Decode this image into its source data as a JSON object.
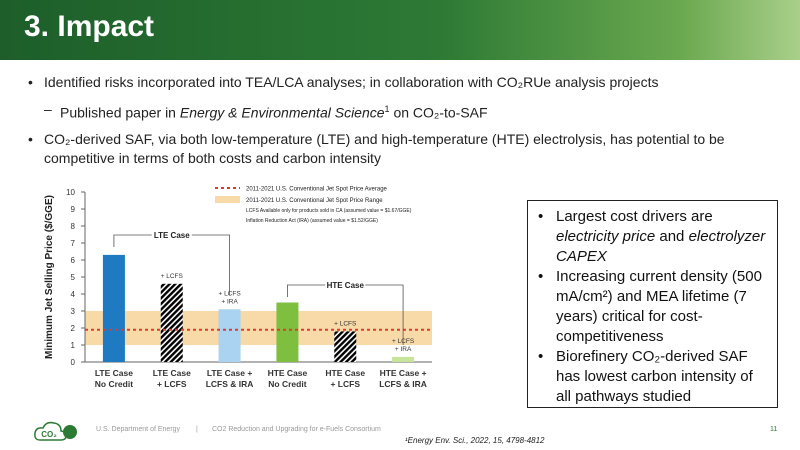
{
  "header": {
    "title": "3.  Impact"
  },
  "bullets": [
    {
      "text": "Identified risks incorporated into TEA/LCA analyses; in collaboration with CO₂RUe analysis projects"
    },
    {
      "parts": [
        "Published paper in ",
        "Energy & Environmental Science",
        "1",
        " on CO₂-to-SAF"
      ]
    },
    {
      "lines": [
        "CO₂-derived SAF, via both low-temperature (LTE) and high-temperature (HTE) electrolysis, has potential to be",
        "competitive in terms of both costs and carbon intensity"
      ]
    }
  ],
  "chart_data": {
    "type": "bar",
    "y_label": "Minimum Jet Selling Price ($/GGE)",
    "categories": [
      [
        "LTE Case",
        "No Credit"
      ],
      [
        "LTE Case",
        "+ LCFS"
      ],
      [
        "LTE Case +",
        "LCFS & IRA"
      ],
      [
        "HTE Case",
        "No Credit"
      ],
      [
        "HTE Case",
        "+ LCFS"
      ],
      [
        "HTE Case +",
        "LCFS & IRA"
      ]
    ],
    "values": [
      6.3,
      4.6,
      3.1,
      3.5,
      1.8,
      0.3
    ],
    "colors": [
      "#1f7bc1",
      "#1f7bc1",
      "#a9d3f0",
      "#7fbf3f",
      "#7fbf3f",
      "#c6e49a"
    ],
    "hatched": [
      false,
      true,
      false,
      false,
      true,
      false
    ],
    "bar_annotations": [
      null,
      [
        "+ LCFS"
      ],
      [
        "+ LCFS",
        "+ IRA"
      ],
      null,
      [
        "+ LCFS"
      ],
      [
        "+ LCFS",
        "+ IRA"
      ]
    ],
    "group_labels": [
      "LTE Case",
      "HTE Case"
    ],
    "reference_line": {
      "value": 1.9,
      "label": "2011-2021 U.S. Conventional Jet Spot Price Average",
      "color": "#e03a2e"
    },
    "reference_band": {
      "low": 1.0,
      "high": 3.0,
      "label": "2011-2021 U.S. Conventional Jet Spot Price Range",
      "color": "#f8d9a8"
    },
    "notes": [
      "LCFS Available only for products sold in CA (assumed value = $1.67/GGE)",
      "Inflation Reduction Act (IRA) (assumed value = $1.52/GGE)"
    ],
    "ylim": [
      0,
      10
    ],
    "yticks": [
      0,
      1,
      2,
      3,
      4,
      5,
      6,
      7,
      8,
      9,
      10
    ]
  },
  "callout": [
    {
      "parts": [
        "Largest cost drivers are ",
        "electricity price",
        " and ",
        "electrolyzer CAPEX"
      ]
    },
    {
      "text": "Increasing current density (500 mA/cm²) and MEA lifetime (7 years) critical for cost-competitiveness"
    },
    {
      "text": "Biorefinery CO₂-derived SAF has lowest carbon intensity of all pathways studied"
    }
  ],
  "footer": {
    "logo": "CO₂",
    "org": "U.S. Department of Energy",
    "separator": "|",
    "consortium": "CO2 Reduction and Upgrading for e-Fuels Consortium",
    "page": "11",
    "reference": "¹Energy Env. Sci., 2022, 15, 4798-4812"
  }
}
